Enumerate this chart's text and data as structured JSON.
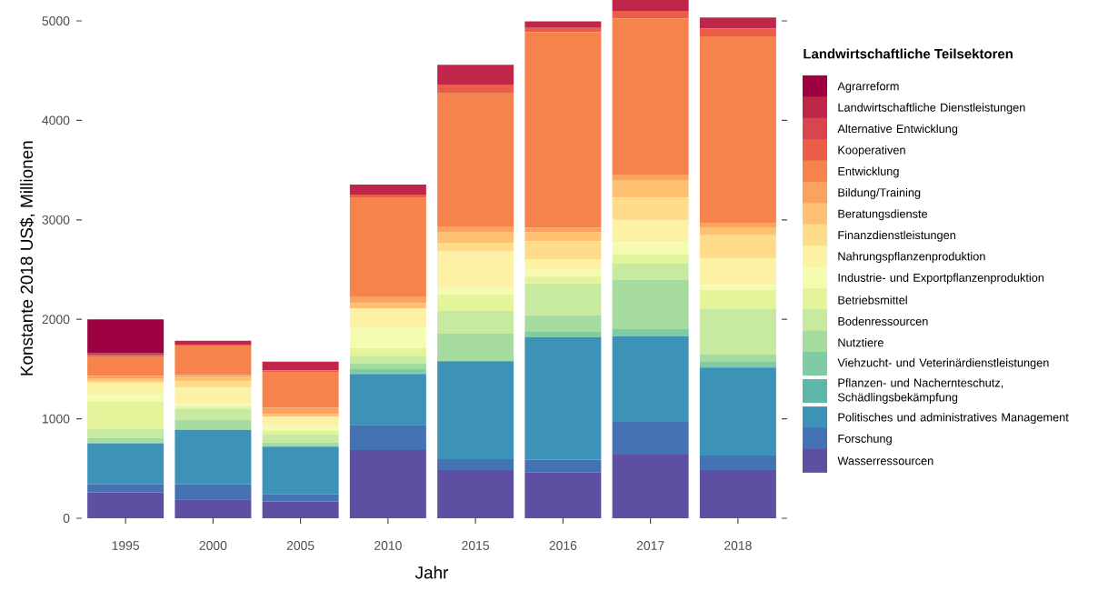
{
  "chart_data": {
    "type": "bar",
    "stacked": true,
    "xlabel": "Jahr",
    "ylabel": "Konstante 2018 US$, Millionen",
    "legend_title": "Landwirtschaftliche Teilsektoren",
    "legend": "right",
    "categories": [
      "1995",
      "2000",
      "2005",
      "2010",
      "2015",
      "2016",
      "2017",
      "2018"
    ],
    "ylim": [
      0,
      5225
    ],
    "yticks": [
      0,
      1000,
      2000,
      3000,
      4000,
      5000
    ],
    "series": [
      {
        "name": "Wasserressourcen",
        "color": "#5e4fa2",
        "values": [
          260,
          190,
          170,
          685,
          485,
          460,
          640,
          485
        ]
      },
      {
        "name": "Forschung",
        "color": "#4572b3",
        "values": [
          80,
          150,
          70,
          255,
          110,
          130,
          330,
          145
        ]
      },
      {
        "name": "Politisches und administratives Management",
        "color": "#3d92b8",
        "values": [
          410,
          550,
          480,
          505,
          985,
          1230,
          860,
          885
        ]
      },
      {
        "name": "Pflanzen- und Nachernteschutz, Schädlingsbekämpfung",
        "color": "#5cb6a9",
        "values": [
          0,
          0,
          0,
          10,
          0,
          0,
          0,
          10
        ]
      },
      {
        "name": "Viehzucht- und Veterinärdienstleistungen",
        "color": "#7fcba4",
        "values": [
          10,
          0,
          10,
          45,
          0,
          55,
          75,
          55
        ]
      },
      {
        "name": "Nutztiere",
        "color": "#a5db9f",
        "values": [
          50,
          100,
          30,
          55,
          275,
          165,
          495,
          65
        ]
      },
      {
        "name": "Bodenressourcen",
        "color": "#c8e9a0",
        "values": [
          90,
          110,
          80,
          80,
          230,
          320,
          165,
          465
        ]
      },
      {
        "name": "Betriebsmittel",
        "color": "#e4f49b",
        "values": [
          270,
          30,
          45,
          75,
          165,
          70,
          90,
          185
        ]
      },
      {
        "name": "Industrie- und Exportpflanzenproduktion",
        "color": "#f6fbb2",
        "values": [
          70,
          30,
          45,
          210,
          65,
          60,
          120,
          50
        ]
      },
      {
        "name": "Nahrungspflanzenproduktion",
        "color": "#fdf1a6",
        "values": [
          120,
          155,
          90,
          190,
          365,
          115,
          220,
          270
        ]
      },
      {
        "name": "Finanzdienstleistungen",
        "color": "#fedc89",
        "values": [
          20,
          60,
          0,
          0,
          90,
          180,
          230,
          230
        ]
      },
      {
        "name": "Beratungsdienste",
        "color": "#fdc171",
        "values": [
          20,
          45,
          30,
          55,
          110,
          90,
          175,
          80
        ]
      },
      {
        "name": "Bildung/Training",
        "color": "#fba35e",
        "values": [
          30,
          20,
          60,
          65,
          55,
          45,
          55,
          40
        ]
      },
      {
        "name": "Entwicklung",
        "color": "#f6834c",
        "values": [
          190,
          300,
          355,
          990,
          1335,
          1965,
          1570,
          1880
        ]
      },
      {
        "name": "Kooperativen",
        "color": "#ea5e47",
        "values": [
          20,
          0,
          20,
          35,
          90,
          45,
          75,
          80
        ]
      },
      {
        "name": "Alternative Entwicklung",
        "color": "#d9444d",
        "values": [
          0,
          0,
          0,
          0,
          0,
          0,
          0,
          0
        ]
      },
      {
        "name": "Landwirtschaftliche Dienstleistungen",
        "color": "#c0264a",
        "values": [
          20,
          45,
          90,
          100,
          200,
          65,
          120,
          110
        ]
      },
      {
        "name": "Agrarreform",
        "color": "#9e0142",
        "values": [
          340,
          0,
          0,
          0,
          0,
          0,
          0,
          0
        ]
      }
    ]
  }
}
